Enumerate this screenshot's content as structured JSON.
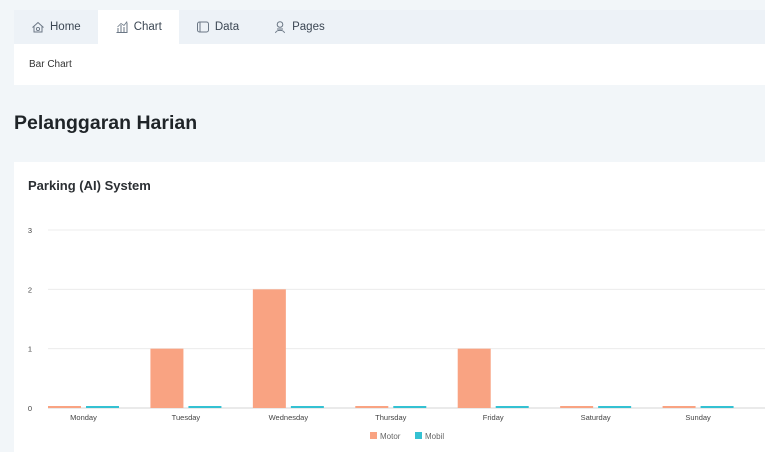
{
  "nav": {
    "tabs": [
      {
        "label": "Home",
        "icon": "home-icon"
      },
      {
        "label": "Chart",
        "icon": "chart-icon",
        "active": true
      },
      {
        "label": "Data",
        "icon": "data-icon"
      },
      {
        "label": "Pages",
        "icon": "pages-icon"
      }
    ]
  },
  "breadcrumb": "Bar Chart",
  "page_title": "Pelanggaran Harian",
  "card_title": "Parking (AI) System",
  "colors": {
    "motor": "#f9a382",
    "mobil": "#34c1d2"
  },
  "chart_data": {
    "type": "bar",
    "title": "Parking (AI) System",
    "categories": [
      "Monday",
      "Tuesday",
      "Wednesday",
      "Thursday",
      "Friday",
      "Saturday",
      "Sunday"
    ],
    "series": [
      {
        "name": "Motor",
        "values": [
          0,
          1,
          2,
          0,
          1,
          0,
          0
        ]
      },
      {
        "name": "Mobil",
        "values": [
          0,
          0,
          0,
          0,
          0,
          0,
          0
        ]
      }
    ],
    "ylim": [
      0,
      3
    ],
    "yticks": [
      0,
      1,
      2,
      3
    ],
    "grid": true,
    "legend": "bottom-center"
  }
}
